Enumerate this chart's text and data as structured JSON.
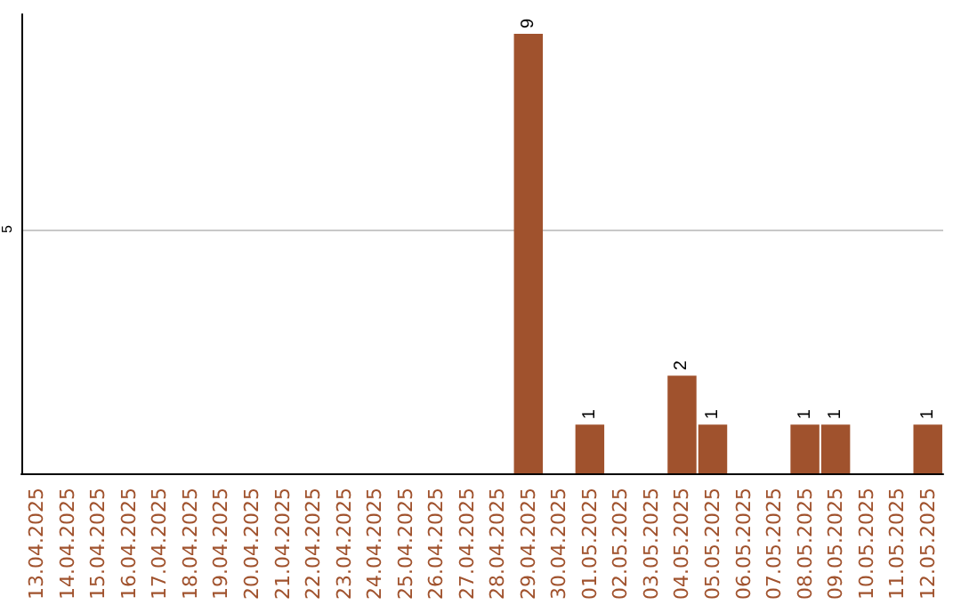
{
  "chart_data": {
    "type": "bar",
    "categories": [
      "13.04.2025",
      "14.04.2025",
      "15.04.2025",
      "16.04.2025",
      "17.04.2025",
      "18.04.2025",
      "19.04.2025",
      "20.04.2025",
      "21.04.2025",
      "22.04.2025",
      "23.04.2025",
      "24.04.2025",
      "25.04.2025",
      "26.04.2025",
      "27.04.2025",
      "28.04.2025",
      "29.04.2025",
      "30.04.2025",
      "01.05.2025",
      "02.05.2025",
      "03.05.2025",
      "04.05.2025",
      "05.05.2025",
      "06.05.2025",
      "07.05.2025",
      "08.05.2025",
      "09.05.2025",
      "10.05.2025",
      "11.05.2025",
      "12.05.2025"
    ],
    "values": [
      null,
      null,
      null,
      null,
      null,
      null,
      null,
      null,
      null,
      null,
      null,
      null,
      null,
      null,
      null,
      null,
      9,
      null,
      1,
      null,
      null,
      2,
      1,
      null,
      null,
      1,
      1,
      null,
      null,
      1
    ],
    "data_labels": true,
    "color": "#a0522d",
    "ylim": [
      0,
      9.4
    ],
    "yticks": [
      5
    ],
    "grid": "y"
  }
}
